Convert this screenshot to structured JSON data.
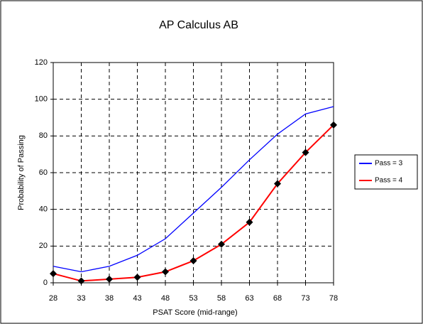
{
  "chart_data": {
    "type": "line",
    "title": "AP Calculus AB",
    "x_label": "PSAT Score (mid-range)",
    "y_label": "Probability of Passing",
    "x": [
      28,
      33,
      38,
      43,
      48,
      53,
      58,
      63,
      68,
      73,
      78
    ],
    "series": [
      {
        "name": "Pass = 3",
        "color": "#0000ff",
        "values": [
          9,
          6,
          9,
          15,
          24,
          38,
          52,
          67,
          81,
          92,
          96
        ]
      },
      {
        "name": "Pass = 4",
        "color": "#ff0000",
        "values": [
          5,
          1,
          2,
          3,
          6,
          12,
          21,
          33,
          54,
          71,
          86
        ]
      }
    ],
    "xlim": [
      28,
      78
    ],
    "xticks": [
      28,
      33,
      38,
      43,
      48,
      53,
      58,
      63,
      68,
      73,
      78
    ],
    "ylim": [
      0,
      120
    ],
    "yticks": [
      0,
      20,
      40,
      60,
      80,
      100,
      120
    ],
    "grid": true,
    "legend": "right"
  }
}
